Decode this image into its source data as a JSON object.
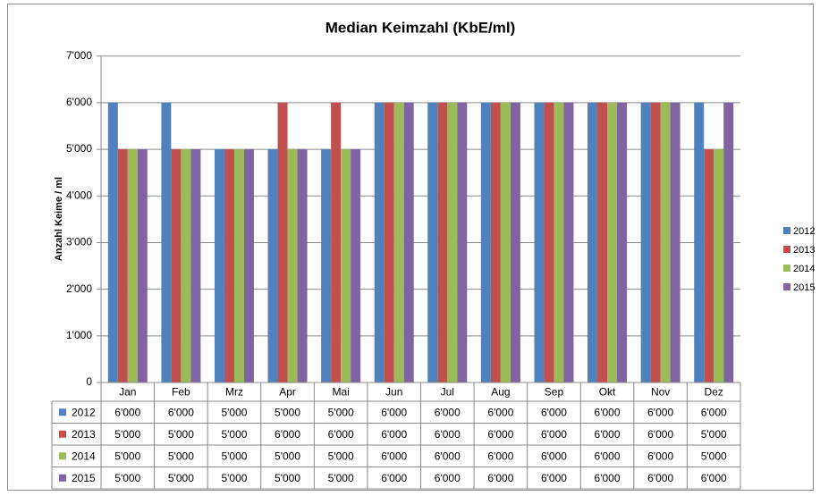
{
  "chart_data": {
    "type": "bar",
    "title": "Median Keimzahl (KbE/ml)",
    "y_label": "Anzahl Keime / ml",
    "categories": [
      "Jan",
      "Feb",
      "Mrz",
      "Apr",
      "Mai",
      "Jun",
      "Jul",
      "Aug",
      "Sep",
      "Okt",
      "Nov",
      "Dez"
    ],
    "series": [
      {
        "name": "2012",
        "color": "#4f81bd",
        "values": [
          6000,
          6000,
          5000,
          5000,
          5000,
          6000,
          6000,
          6000,
          6000,
          6000,
          6000,
          6000
        ],
        "value_labels": [
          "6'000",
          "6'000",
          "5'000",
          "5'000",
          "5'000",
          "6'000",
          "6'000",
          "6'000",
          "6'000",
          "6'000",
          "6'000",
          "6'000"
        ]
      },
      {
        "name": "2013",
        "color": "#c0504d",
        "values": [
          5000,
          5000,
          5000,
          6000,
          6000,
          6000,
          6000,
          6000,
          6000,
          6000,
          6000,
          5000
        ],
        "value_labels": [
          "5'000",
          "5'000",
          "5'000",
          "6'000",
          "6'000",
          "6'000",
          "6'000",
          "6'000",
          "6'000",
          "6'000",
          "6'000",
          "5'000"
        ]
      },
      {
        "name": "2014",
        "color": "#9bbb59",
        "values": [
          5000,
          5000,
          5000,
          5000,
          5000,
          6000,
          6000,
          6000,
          6000,
          6000,
          6000,
          5000
        ],
        "value_labels": [
          "5'000",
          "5'000",
          "5'000",
          "5'000",
          "5'000",
          "6'000",
          "6'000",
          "6'000",
          "6'000",
          "6'000",
          "6'000",
          "5'000"
        ]
      },
      {
        "name": "2015",
        "color": "#8064a2",
        "values": [
          5000,
          5000,
          5000,
          5000,
          5000,
          6000,
          6000,
          6000,
          6000,
          6000,
          6000,
          6000
        ],
        "value_labels": [
          "5'000",
          "5'000",
          "5'000",
          "5'000",
          "5'000",
          "6'000",
          "6'000",
          "6'000",
          "6'000",
          "6'000",
          "6'000",
          "6'000"
        ]
      }
    ],
    "ylim": [
      0,
      7000
    ],
    "yticks": [
      0,
      {
        "value": 1000,
        "label": "1'000"
      },
      {
        "value": 2000,
        "label": "2'000"
      },
      {
        "value": 3000,
        "label": "3'000"
      },
      {
        "value": 4000,
        "label": "4'000"
      },
      {
        "value": 5000,
        "label": "5'000"
      },
      {
        "value": 6000,
        "label": "6'000"
      },
      {
        "value": 7000,
        "label": "7'000"
      }
    ],
    "grid": true,
    "legend": "right",
    "data_table": true
  }
}
